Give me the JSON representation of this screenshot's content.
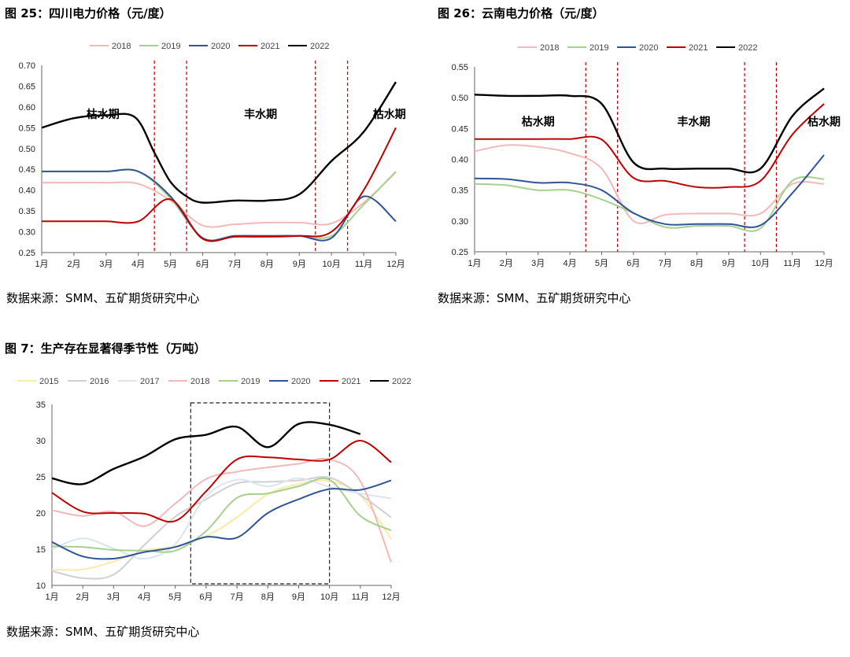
{
  "figures": [
    {
      "title": "图 25：四川电力价格（元/度）",
      "source": "数据来源：SMM、五矿期货研究中心",
      "annotations": [
        "枯水期",
        "丰水期",
        "枯水期"
      ]
    },
    {
      "title": "图 26：云南电力价格（元/度）",
      "source": "数据来源：SMM、五矿期货研究中心",
      "annotations": [
        "枯水期",
        "丰水期",
        "枯水期"
      ]
    },
    {
      "title": "图 7：生产存在显著得季节性（万吨）",
      "source": "数据来源：SMM、五矿期货研究中心",
      "annotations": []
    }
  ],
  "chart_data": [
    {
      "type": "line",
      "categories": [
        "1月",
        "2月",
        "3月",
        "4月",
        "5月",
        "6月",
        "7月",
        "8月",
        "9月",
        "10月",
        "11月",
        "12月"
      ],
      "ylim": [
        0.25,
        0.7
      ],
      "yticks": [
        "0.25",
        "0.30",
        "0.35",
        "0.40",
        "0.45",
        "0.50",
        "0.55",
        "0.60",
        "0.65",
        "0.70"
      ],
      "legend_position": "top",
      "grid": false,
      "dashed_dividers_between": [
        [
          4,
          5
        ],
        [
          5,
          6
        ],
        [
          9,
          10
        ],
        [
          10,
          11
        ]
      ],
      "series": [
        {
          "name": "2018",
          "color": "#f4b8b8",
          "x": [
            1,
            2,
            3,
            4,
            5,
            6,
            7,
            8,
            9,
            10,
            11,
            12
          ],
          "values": [
            0.418,
            0.418,
            0.418,
            0.415,
            0.375,
            0.315,
            0.318,
            0.322,
            0.322,
            0.32,
            0.37,
            0.443
          ]
        },
        {
          "name": "2019",
          "color": "#a6d08e",
          "x": [
            1,
            2,
            3,
            4,
            5,
            6,
            7,
            8,
            9,
            10,
            11,
            12
          ],
          "values": [
            0.445,
            0.445,
            0.445,
            0.445,
            0.38,
            0.285,
            0.29,
            0.29,
            0.29,
            0.29,
            0.365,
            0.445
          ]
        },
        {
          "name": "2020",
          "color": "#2f5597",
          "x": [
            1,
            2,
            3,
            4,
            5,
            6,
            7,
            8,
            9,
            10,
            11,
            12
          ],
          "values": [
            0.445,
            0.445,
            0.445,
            0.445,
            0.385,
            0.285,
            0.29,
            0.29,
            0.29,
            0.285,
            0.385,
            0.325
          ]
        },
        {
          "name": "2021",
          "color": "#c00000",
          "x": [
            1,
            2,
            3,
            4,
            5,
            6,
            7,
            8,
            9,
            10,
            11,
            12
          ],
          "values": [
            0.325,
            0.325,
            0.325,
            0.325,
            0.378,
            0.283,
            0.288,
            0.288,
            0.29,
            0.3,
            0.4,
            0.55
          ]
        },
        {
          "name": "2022",
          "color": "#000000",
          "x": [
            1,
            2,
            3,
            3.9,
            4.5,
            5,
            5.5,
            6,
            7,
            8,
            9,
            10,
            11,
            12
          ],
          "values": [
            0.55,
            0.573,
            0.58,
            0.575,
            0.49,
            0.42,
            0.385,
            0.37,
            0.375,
            0.375,
            0.39,
            0.47,
            0.54,
            0.66
          ]
        }
      ]
    },
    {
      "type": "line",
      "categories": [
        "1月",
        "2月",
        "3月",
        "4月",
        "5月",
        "6月",
        "7月",
        "8月",
        "9月",
        "10月",
        "11月",
        "12月"
      ],
      "ylim": [
        0.25,
        0.55
      ],
      "yticks": [
        "0.25",
        "0.30",
        "0.35",
        "0.40",
        "0.45",
        "0.50",
        "0.55"
      ],
      "legend_position": "top",
      "grid": false,
      "dashed_dividers_between": [
        [
          4,
          5
        ],
        [
          5,
          6
        ],
        [
          9,
          10
        ],
        [
          10,
          11
        ]
      ],
      "series": [
        {
          "name": "2018",
          "color": "#f4b8b8",
          "x": [
            1,
            2,
            3,
            4,
            5,
            6,
            7,
            8,
            9,
            10,
            11,
            12
          ],
          "values": [
            0.413,
            0.423,
            0.42,
            0.41,
            0.385,
            0.3,
            0.31,
            0.312,
            0.312,
            0.312,
            0.36,
            0.36
          ]
        },
        {
          "name": "2019",
          "color": "#a6d08e",
          "x": [
            1,
            2,
            3,
            4,
            5,
            6,
            7,
            8,
            9,
            10,
            11,
            12
          ],
          "values": [
            0.36,
            0.358,
            0.35,
            0.35,
            0.335,
            0.313,
            0.29,
            0.292,
            0.292,
            0.288,
            0.365,
            0.368
          ]
        },
        {
          "name": "2020",
          "color": "#2f5597",
          "x": [
            1,
            2,
            3,
            4,
            5,
            6,
            7,
            8,
            9,
            10,
            11,
            12
          ],
          "values": [
            0.369,
            0.368,
            0.362,
            0.362,
            0.35,
            0.313,
            0.295,
            0.295,
            0.295,
            0.293,
            0.345,
            0.407
          ]
        },
        {
          "name": "2021",
          "color": "#c00000",
          "x": [
            1,
            2,
            3,
            4,
            5,
            6,
            7,
            8,
            9,
            10,
            11,
            12
          ],
          "values": [
            0.433,
            0.433,
            0.433,
            0.433,
            0.432,
            0.37,
            0.365,
            0.355,
            0.355,
            0.365,
            0.44,
            0.49
          ]
        },
        {
          "name": "2022",
          "color": "#000000",
          "x": [
            1,
            2,
            3,
            4,
            5,
            6,
            7,
            8,
            9,
            10,
            11,
            12
          ],
          "values": [
            0.505,
            0.503,
            0.503,
            0.503,
            0.49,
            0.395,
            0.385,
            0.385,
            0.385,
            0.385,
            0.47,
            0.515
          ]
        }
      ]
    },
    {
      "type": "line",
      "categories": [
        "1月",
        "2月",
        "3月",
        "4月",
        "5月",
        "6月",
        "7月",
        "8月",
        "9月",
        "10月",
        "11月",
        "12月"
      ],
      "ylim": [
        10,
        35
      ],
      "yticks": [
        "10",
        "15",
        "20",
        "25",
        "30",
        "35"
      ],
      "legend_position": "top",
      "grid": false,
      "highlight_box_months": [
        6,
        10
      ],
      "series": [
        {
          "name": "2015",
          "color": "#fde9a8",
          "x": [
            1,
            2,
            3,
            4,
            5,
            6,
            7,
            8,
            9,
            10,
            11,
            12
          ],
          "values": [
            12.2,
            12.2,
            13.3,
            14.8,
            15.4,
            16.8,
            19.4,
            22.6,
            24.0,
            24.4,
            22.4,
            16.4
          ]
        },
        {
          "name": "2016",
          "color": "#d0d0d0",
          "x": [
            1,
            2,
            3,
            4,
            5,
            6,
            7,
            8,
            9,
            10,
            11,
            12
          ],
          "values": [
            12.0,
            11.0,
            11.5,
            15.6,
            19.5,
            21.9,
            24.1,
            24.3,
            24.5,
            24.9,
            22.5,
            19.4
          ]
        },
        {
          "name": "2017",
          "color": "#dbe5f1",
          "x": [
            1,
            2,
            3,
            4,
            5,
            6,
            7,
            8,
            9,
            10,
            11,
            12
          ],
          "values": [
            15.0,
            16.5,
            15.1,
            13.7,
            15.7,
            22.3,
            24.6,
            23.7,
            24.8,
            23.6,
            22.7,
            22.0
          ]
        },
        {
          "name": "2018",
          "color": "#f4b8b8",
          "x": [
            1,
            2,
            3,
            4,
            5,
            6,
            7,
            8,
            9,
            10,
            11,
            12
          ],
          "values": [
            20.4,
            19.6,
            20.2,
            18.2,
            21.3,
            24.7,
            25.7,
            26.3,
            26.8,
            27.4,
            24.4,
            13.2
          ]
        },
        {
          "name": "2019",
          "color": "#a6d08e",
          "x": [
            1,
            2,
            3,
            4,
            5,
            6,
            7,
            8,
            9,
            10,
            11,
            12
          ],
          "values": [
            15.4,
            15.3,
            14.9,
            14.8,
            14.8,
            17.5,
            22.1,
            22.7,
            23.7,
            24.6,
            19.6,
            17.6
          ]
        },
        {
          "name": "2020",
          "color": "#2f5597",
          "x": [
            1,
            2,
            3,
            4,
            5,
            6,
            7,
            8,
            9,
            10,
            11,
            12
          ],
          "values": [
            16.0,
            14.0,
            13.7,
            14.6,
            15.3,
            16.7,
            16.6,
            20.0,
            21.9,
            23.3,
            23.2,
            24.5
          ]
        },
        {
          "name": "2021",
          "color": "#c00000",
          "x": [
            1,
            2,
            3,
            4,
            5,
            6,
            7,
            8,
            9,
            10,
            11,
            12
          ],
          "values": [
            22.8,
            20.2,
            20.0,
            19.9,
            18.9,
            23.0,
            27.4,
            27.7,
            27.4,
            27.4,
            30.0,
            27.0
          ]
        },
        {
          "name": "2022",
          "color": "#000000",
          "x": [
            1,
            2,
            3,
            4,
            5,
            6,
            7,
            8,
            9,
            10,
            11
          ],
          "values": [
            24.8,
            24.0,
            26.1,
            27.8,
            30.2,
            30.8,
            31.9,
            29.1,
            32.3,
            32.2,
            30.9
          ]
        }
      ]
    }
  ]
}
